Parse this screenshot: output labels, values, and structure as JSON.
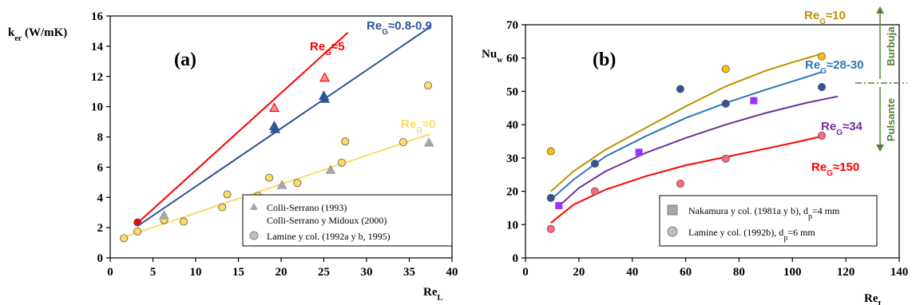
{
  "chart_data": [
    {
      "type": "scatter",
      "panel_label": "(a)",
      "ylabel": "k",
      "ylabel_sub": "er",
      "ylabel_unit": " (W/mK)",
      "xlabel": "Re",
      "xlabel_sub": "L",
      "xlim": [
        0,
        40
      ],
      "ylim": [
        0,
        16
      ],
      "xticks": [
        0,
        5,
        10,
        15,
        20,
        25,
        30,
        35,
        40
      ],
      "yticks": [
        0,
        2,
        4,
        6,
        8,
        10,
        12,
        14,
        16
      ],
      "grid": false,
      "legend_position": "bottom-right",
      "legend": [
        {
          "marker": "triangle",
          "text": "Colli-Serrano (1993)"
        },
        {
          "marker": "none",
          "text": "Colli-Serrano y Midoux (2000)"
        },
        {
          "marker": "circle",
          "text": "Lamine y col. (1992a y b, 1995)"
        }
      ],
      "series": [
        {
          "curve_label": "Re",
          "curve_sub": "G",
          "curve_suffix": "≈5",
          "color": "#ff0000",
          "line": [
            [
              3.2,
              2.3
            ],
            [
              27.8,
              14.9
            ]
          ],
          "triangles": [
            [
              19.2,
              9.9
            ],
            [
              25.1,
              11.9
            ]
          ],
          "circles": [
            [
              3.2,
              2.35
            ]
          ]
        },
        {
          "curve_label": "Re",
          "curve_sub": "G",
          "curve_suffix": "≈0.8-0.9",
          "color": "#2f5597",
          "line": [
            [
              3.2,
              2.1
            ],
            [
              37.5,
              15.3
            ]
          ],
          "triangles": [
            [
              19.2,
              8.7
            ],
            [
              19.3,
              8.5
            ],
            [
              25.0,
              10.7
            ],
            [
              25.1,
              10.5
            ]
          ],
          "circles": []
        },
        {
          "curve_label": "Re",
          "curve_sub": "G",
          "curve_suffix": "≈0",
          "color": "#ffd966",
          "line": [
            [
              1.5,
              1.35
            ],
            [
              37.5,
              8.2
            ]
          ],
          "triangles": [
            [
              6.3,
              2.8
            ],
            [
              20.1,
              4.8
            ],
            [
              25.8,
              5.8
            ],
            [
              37.3,
              7.6
            ]
          ],
          "circles": [
            [
              1.6,
              1.3
            ],
            [
              3.2,
              1.75
            ],
            [
              6.3,
              2.5
            ],
            [
              8.6,
              2.4
            ],
            [
              13.1,
              3.35
            ],
            [
              13.7,
              4.2
            ],
            [
              17.3,
              4.1
            ],
            [
              18.6,
              5.3
            ],
            [
              21.9,
              4.95
            ],
            [
              27.1,
              6.3
            ],
            [
              27.5,
              7.7
            ],
            [
              34.3,
              7.65
            ],
            [
              37.2,
              11.4
            ]
          ]
        }
      ]
    },
    {
      "type": "scatter",
      "panel_label": "(b)",
      "ylabel": "Nu",
      "ylabel_sub": "w",
      "xlabel": "Re",
      "xlabel_sub": "L",
      "xlim": [
        0,
        140
      ],
      "ylim": [
        0,
        70
      ],
      "xticks": [
        0,
        20,
        40,
        60,
        80,
        100,
        120,
        140
      ],
      "yticks": [
        0,
        10,
        20,
        30,
        40,
        50,
        60,
        70
      ],
      "grid": false,
      "legend_position": "bottom-right",
      "legend": [
        {
          "marker": "square",
          "text": "Nakamura y col. (1981a y b), d",
          "sub": "p",
          "after": "=4 mm"
        },
        {
          "marker": "circle",
          "text": "Lamine y col. (1992b), d",
          "sub": "p",
          "after": "=6 mm"
        }
      ],
      "regimes": [
        "Burbuja",
        "Pulsante"
      ],
      "regime_color": "#548235",
      "series": [
        {
          "curve_label": "Re",
          "curve_sub": "G",
          "curve_suffix": "≈10",
          "color": "#bf9000",
          "marker_fill": "#ffc000",
          "line": [
            [
              9.5,
              20.0
            ],
            [
              18,
              26.0
            ],
            [
              30,
              32.5
            ],
            [
              45,
              39.0
            ],
            [
              60,
              45.5
            ],
            [
              75,
              51.5
            ],
            [
              90,
              56.2
            ],
            [
              100,
              58.7
            ],
            [
              111,
              61.3
            ]
          ],
          "circles": [
            [
              9.5,
              32.0
            ],
            [
              75,
              56.7
            ],
            [
              111,
              60.5
            ]
          ],
          "squares": []
        },
        {
          "curve_label": "Re",
          "curve_sub": "G",
          "curve_suffix": "≈28-30",
          "color": "#2e75b6",
          "marker_fill": "#2f5597",
          "line": [
            [
              9.5,
              17.5
            ],
            [
              18,
              23.5
            ],
            [
              30,
              30.5
            ],
            [
              45,
              36.5
            ],
            [
              60,
              42.0
            ],
            [
              75,
              46.5
            ],
            [
              90,
              50.5
            ],
            [
              100,
              53.0
            ],
            [
              111,
              55.8
            ]
          ],
          "circles": [
            [
              9.5,
              18.0
            ],
            [
              26,
              28.3
            ],
            [
              58,
              50.7
            ],
            [
              75,
              46.3
            ],
            [
              111,
              51.3
            ]
          ],
          "squares": []
        },
        {
          "curve_label": "Re",
          "curve_sub": "G",
          "curve_suffix": "≈34",
          "color": "#7030a0",
          "marker_fill": "#9933ff",
          "line": [
            [
              12.5,
              15.5
            ],
            [
              20,
              21.0
            ],
            [
              30,
              26.0
            ],
            [
              45,
              31.5
            ],
            [
              60,
              36.0
            ],
            [
              75,
              40.0
            ],
            [
              90,
              43.5
            ],
            [
              105,
              46.5
            ],
            [
              117,
              48.5
            ]
          ],
          "circles": [],
          "squares": [
            [
              12.5,
              15.7
            ],
            [
              42.5,
              31.7
            ],
            [
              85.5,
              47.2
            ]
          ]
        },
        {
          "curve_label": "Re",
          "curve_sub": "G",
          "curve_suffix": "≈150",
          "color": "#ff0000",
          "marker_fill": "#ff6680",
          "line": [
            [
              9.5,
              10.5
            ],
            [
              18,
              16.0
            ],
            [
              30,
              20.5
            ],
            [
              45,
              24.5
            ],
            [
              60,
              27.8
            ],
            [
              75,
              30.3
            ],
            [
              90,
              32.8
            ],
            [
              100,
              34.5
            ],
            [
              111,
              36.5
            ]
          ],
          "circles": [
            [
              9.5,
              8.7
            ],
            [
              26,
              20.0
            ],
            [
              58,
              22.3
            ],
            [
              75,
              29.8
            ],
            [
              111,
              36.7
            ]
          ],
          "squares": []
        }
      ]
    }
  ]
}
